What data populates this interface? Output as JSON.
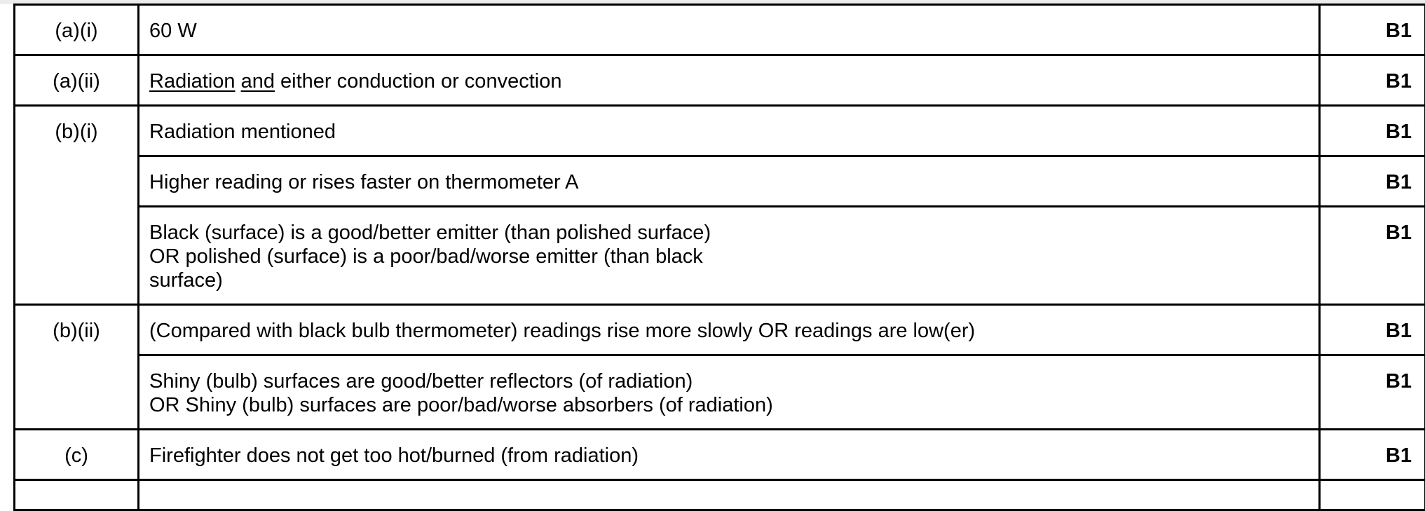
{
  "rows": [
    {
      "question": "(a)(i)",
      "answer_lines": [
        "60 W"
      ],
      "mark": "B1"
    },
    {
      "question": "(a)(ii)",
      "answer_underlined": [
        "Radiation",
        "and"
      ],
      "answer_rest": " either conduction or convection",
      "mark": "B1"
    },
    {
      "question": "(b)(i)",
      "answer_lines": [
        "Radiation mentioned"
      ],
      "mark": "B1"
    },
    {
      "question": "",
      "answer_lines": [
        "Higher reading or rises faster on thermometer A"
      ],
      "mark": "B1"
    },
    {
      "question": "",
      "answer_lines": [
        "Black (surface) is a good/better emitter (than polished surface)",
        "OR polished (surface) is a poor/bad/worse emitter (than black",
        "surface)"
      ],
      "mark": "B1"
    },
    {
      "question": "(b)(ii)",
      "answer_lines": [
        "(Compared with black bulb thermometer) readings rise more slowly OR readings are low(er)"
      ],
      "mark": "B1"
    },
    {
      "question": "",
      "answer_lines": [
        "Shiny (bulb) surfaces are good/better reflectors (of radiation)",
        "OR Shiny (bulb) surfaces are poor/bad/worse absorbers (of radiation)"
      ],
      "mark": "B1"
    },
    {
      "question": "(c)",
      "answer_lines": [
        "Firefighter does not get too hot/burned (from radiation)"
      ],
      "mark": "B1"
    }
  ]
}
